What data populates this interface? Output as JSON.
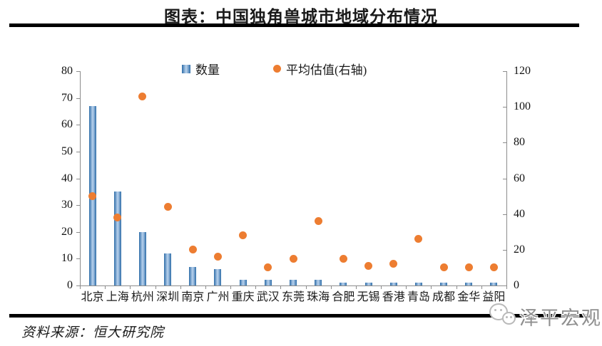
{
  "title": "图表：中国独角兽城市地域分布情况",
  "source_note": "资料来源：恒大研究院",
  "watermark_text": "泽平宏观",
  "legend": {
    "bar_label": "数量",
    "dot_label": "平均估值(右轴)"
  },
  "colors": {
    "bar_edge": "#2E6DA8",
    "bar_center": "#AFCBE8",
    "dot_orange": "#ED7D31",
    "axis_gray": "#8c8c8c",
    "watermark_gray": "#8f8f8f"
  },
  "chart_data": {
    "type": "bar",
    "title": "图表：中国独角兽城市地域分布情况",
    "categories": [
      "北京",
      "上海",
      "杭州",
      "深圳",
      "南京",
      "广州",
      "重庆",
      "武汉",
      "东莞",
      "珠海",
      "合肥",
      "无锡",
      "香港",
      "青岛",
      "成都",
      "金华",
      "益阳"
    ],
    "series": [
      {
        "name": "数量",
        "type": "bar",
        "axis": "left",
        "values": [
          67,
          35,
          20,
          12,
          7,
          6,
          2,
          2,
          2,
          2,
          1,
          1,
          1,
          1,
          1,
          1,
          1
        ]
      },
      {
        "name": "平均估值(右轴)",
        "type": "scatter",
        "axis": "right",
        "values": [
          50,
          38,
          106,
          44,
          20,
          16,
          28,
          10,
          15,
          36,
          15,
          11,
          12,
          26,
          10,
          10,
          10
        ]
      }
    ],
    "left_axis": {
      "min": 0,
      "max": 80,
      "step": 10,
      "ticks": [
        0,
        10,
        20,
        30,
        40,
        50,
        60,
        70,
        80
      ]
    },
    "right_axis": {
      "min": 0,
      "max": 120,
      "step": 20,
      "ticks": [
        0,
        20,
        40,
        60,
        80,
        100,
        120
      ]
    },
    "grid": false,
    "legend_position": "top"
  }
}
